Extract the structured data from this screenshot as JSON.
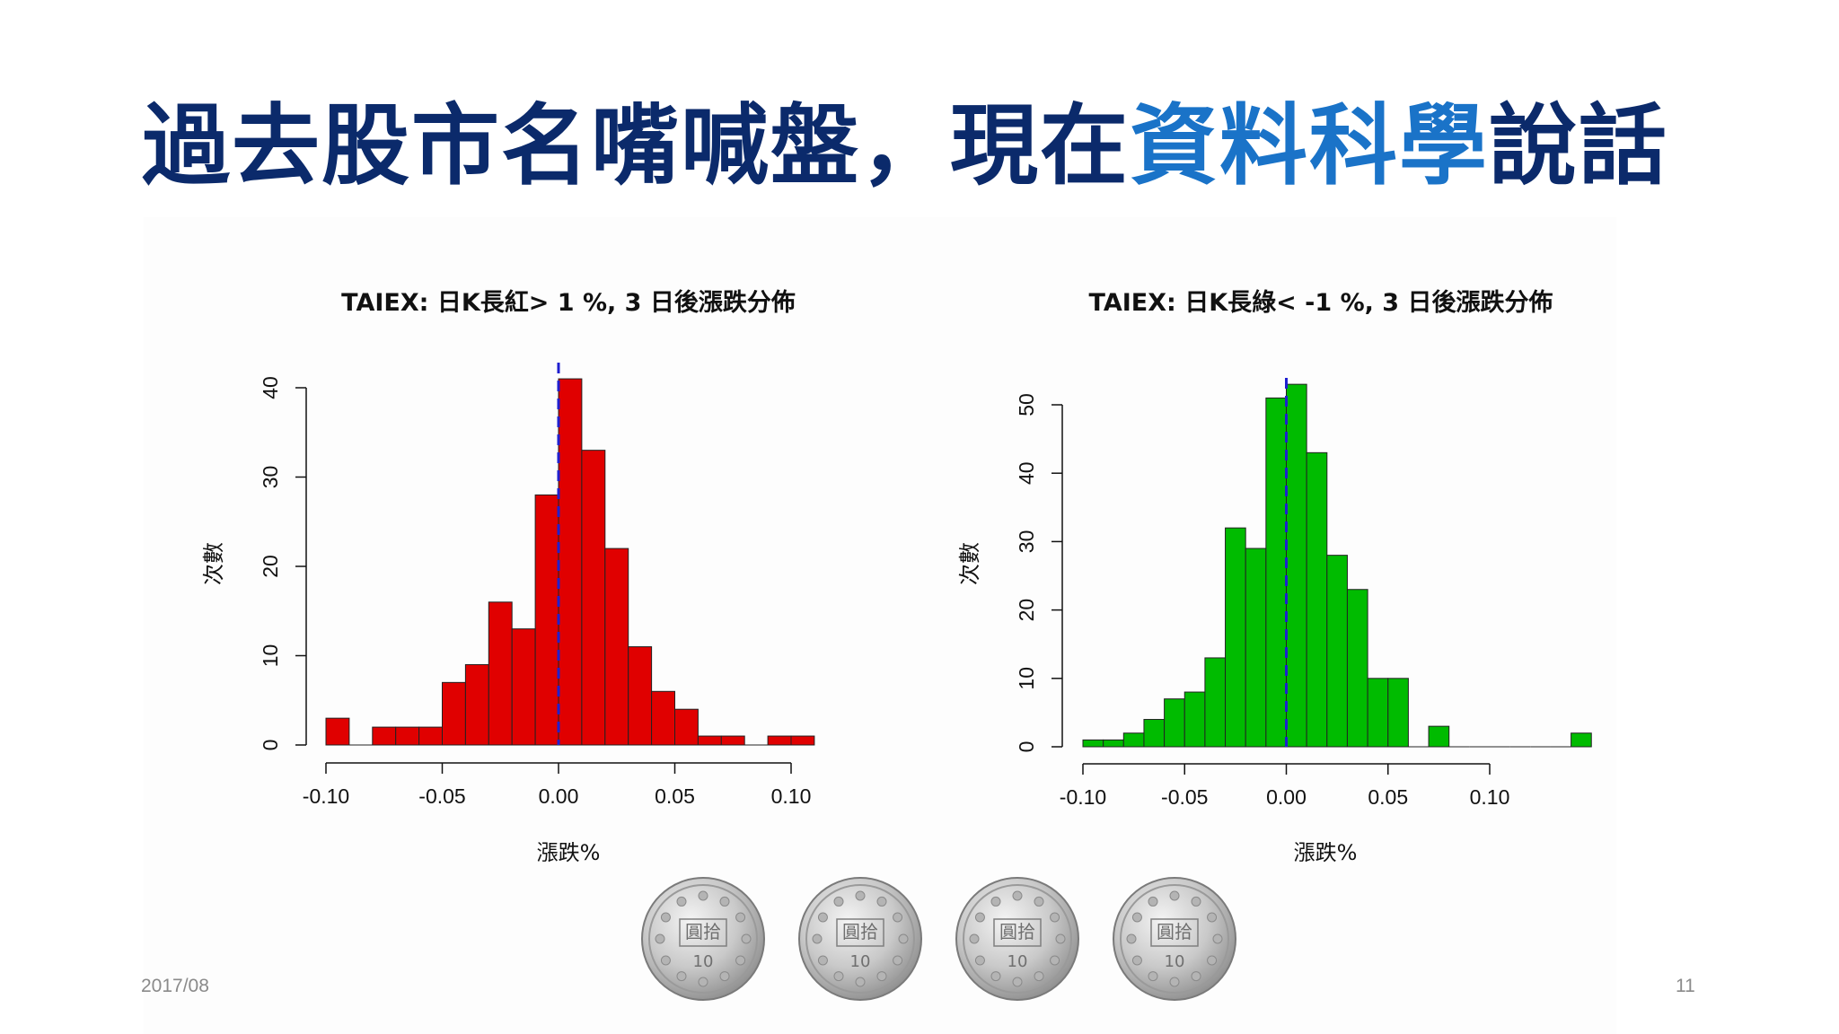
{
  "slide": {
    "title_part1": "過去股市名嘴喊盤，現在",
    "title_highlight": "資料科學",
    "title_part2": "說話",
    "title_color": "#0b2a6b",
    "highlight_color": "#1a73c8",
    "date": "2017/08",
    "page_number": "11",
    "coin_text_top": "圓拾",
    "coin_text_value": "10",
    "coin_count": 4
  },
  "chart_data": [
    {
      "type": "bar",
      "title": "TAIEX: 日K長紅> 1 %, 3 日後漲跌分佈",
      "xlabel": "漲跌%",
      "ylabel": "次數",
      "bar_color": "#e00000",
      "ref_line_color": "#1f1fd0",
      "ref_line_x": 0,
      "bin_width": 0.01,
      "bins_start": -0.1,
      "values": [
        3,
        0,
        2,
        2,
        2,
        7,
        9,
        16,
        13,
        28,
        41,
        33,
        22,
        11,
        6,
        4,
        1,
        1,
        0,
        1,
        1
      ],
      "xlim": [
        -0.1,
        0.11
      ],
      "ylim": [
        0,
        40
      ],
      "x_ticks": [
        -0.1,
        -0.05,
        0,
        0.05,
        0.1
      ],
      "x_tick_labels": [
        "-0.10",
        "-0.05",
        "0.00",
        "0.05",
        "0.10"
      ],
      "y_ticks": [
        0,
        10,
        20,
        30,
        40
      ],
      "y_tick_labels": [
        "0",
        "10",
        "20",
        "30",
        "40"
      ]
    },
    {
      "type": "bar",
      "title": "TAIEX: 日K長綠< -1 %, 3 日後漲跌分佈",
      "xlabel": "漲跌%",
      "ylabel": "次數",
      "bar_color": "#00bb00",
      "ref_line_color": "#1f1fd0",
      "ref_line_x": 0,
      "bin_width": 0.01,
      "bins_start": -0.1,
      "values": [
        1,
        1,
        2,
        4,
        7,
        8,
        13,
        32,
        29,
        51,
        53,
        43,
        28,
        23,
        10,
        10,
        0,
        3,
        0,
        0,
        0,
        0,
        0,
        0,
        2
      ],
      "xlim": [
        -0.1,
        0.14
      ],
      "ylim": [
        0,
        50
      ],
      "x_ticks": [
        -0.1,
        -0.05,
        0,
        0.05,
        0.1
      ],
      "x_tick_labels": [
        "-0.10",
        "-0.05",
        "0.00",
        "0.05",
        "0.10"
      ],
      "y_ticks": [
        0,
        10,
        20,
        30,
        40,
        50
      ],
      "y_tick_labels": [
        "0",
        "10",
        "20",
        "30",
        "40",
        "50"
      ]
    }
  ]
}
